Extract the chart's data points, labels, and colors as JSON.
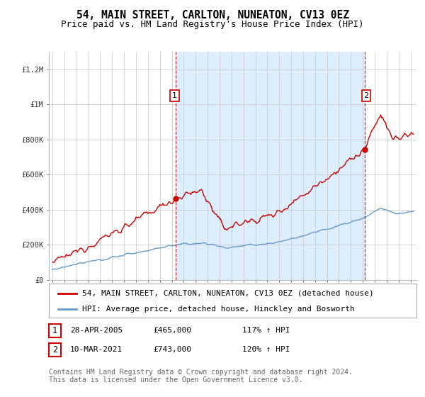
{
  "title": "54, MAIN STREET, CARLTON, NUNEATON, CV13 0EZ",
  "subtitle": "Price paid vs. HM Land Registry's House Price Index (HPI)",
  "ylabel_ticks": [
    "£0",
    "£200K",
    "£400K",
    "£600K",
    "£800K",
    "£1M",
    "£1.2M"
  ],
  "ytick_vals": [
    0,
    200000,
    400000,
    600000,
    800000,
    1000000,
    1200000
  ],
  "ylim": [
    0,
    1300000
  ],
  "xlim_start": 1994.7,
  "xlim_end": 2025.5,
  "red_line_color": "#cc0000",
  "blue_line_color": "#6699cc",
  "shade_color": "#ddeeff",
  "marker1_x": 2005.32,
  "marker1_y": 465000,
  "marker2_x": 2021.19,
  "marker2_y": 743000,
  "vline1_x": 2005.32,
  "vline2_x": 2021.19,
  "legend_label_red": "54, MAIN STREET, CARLTON, NUNEATON, CV13 0EZ (detached house)",
  "legend_label_blue": "HPI: Average price, detached house, Hinckley and Bosworth",
  "annotation1_date": "28-APR-2005",
  "annotation1_price": "£465,000",
  "annotation1_hpi": "117% ↑ HPI",
  "annotation2_date": "10-MAR-2021",
  "annotation2_price": "£743,000",
  "annotation2_hpi": "120% ↑ HPI",
  "footer": "Contains HM Land Registry data © Crown copyright and database right 2024.\nThis data is licensed under the Open Government Licence v3.0.",
  "bg_color": "#ffffff",
  "grid_color": "#cccccc",
  "title_fontsize": 10.5,
  "subtitle_fontsize": 9,
  "tick_fontsize": 7.5,
  "legend_fontsize": 8,
  "footer_fontsize": 7
}
